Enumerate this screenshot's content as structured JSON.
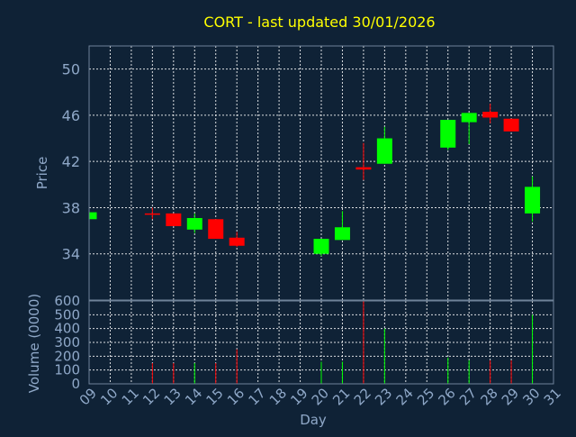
{
  "chart_data": {
    "type": "candlestick",
    "title": "CORT - last updated 30/01/2026",
    "price_panel": {
      "ylabel": "Price",
      "ylim": [
        30,
        52
      ],
      "yticks": [
        34,
        38,
        42,
        46,
        50
      ]
    },
    "volume_panel": {
      "ylabel": "Volume (0000)",
      "ylim": [
        0,
        600
      ],
      "yticks": [
        0,
        100,
        200,
        300,
        400,
        500,
        600
      ]
    },
    "xlabel": "Day",
    "xticks": [
      "09",
      "10",
      "11",
      "12",
      "13",
      "14",
      "15",
      "16",
      "17",
      "18",
      "19",
      "20",
      "21",
      "22",
      "23",
      "24",
      "25",
      "26",
      "27",
      "28",
      "29",
      "30",
      "31"
    ],
    "colors": {
      "up": "#00ff00",
      "down": "#ff0000"
    },
    "candles": [
      {
        "day": "09",
        "open": 37.0,
        "high": 37.6,
        "low": 37.0,
        "close": 37.6,
        "volume": 0
      },
      {
        "day": "12",
        "open": 37.5,
        "high": 38.0,
        "low": 37.0,
        "close": 37.4,
        "volume": 150
      },
      {
        "day": "13",
        "open": 37.5,
        "high": 37.5,
        "low": 36.4,
        "close": 36.4,
        "volume": 150
      },
      {
        "day": "14",
        "open": 36.1,
        "high": 37.5,
        "low": 35.8,
        "close": 37.1,
        "volume": 150
      },
      {
        "day": "15",
        "open": 37.0,
        "high": 37.0,
        "low": 35.3,
        "close": 35.3,
        "volume": 150
      },
      {
        "day": "16",
        "open": 35.4,
        "high": 35.9,
        "low": 34.6,
        "close": 34.7,
        "volume": 250
      },
      {
        "day": "20",
        "open": 34.0,
        "high": 35.3,
        "low": 33.8,
        "close": 35.3,
        "volume": 160
      },
      {
        "day": "21",
        "open": 35.2,
        "high": 37.7,
        "low": 35.2,
        "close": 36.3,
        "volume": 160
      },
      {
        "day": "22",
        "open": 41.5,
        "high": 43.6,
        "low": 40.4,
        "close": 41.3,
        "volume": 600
      },
      {
        "day": "23",
        "open": 41.8,
        "high": 45.0,
        "low": 41.8,
        "close": 44.0,
        "volume": 400
      },
      {
        "day": "26",
        "open": 43.2,
        "high": 45.6,
        "low": 43.0,
        "close": 45.6,
        "volume": 190
      },
      {
        "day": "27",
        "open": 45.4,
        "high": 46.2,
        "low": 43.5,
        "close": 46.2,
        "volume": 170
      },
      {
        "day": "28",
        "open": 46.3,
        "high": 47.0,
        "low": 45.3,
        "close": 45.8,
        "volume": 170
      },
      {
        "day": "29",
        "open": 45.7,
        "high": 45.7,
        "low": 44.6,
        "close": 44.6,
        "volume": 170
      },
      {
        "day": "30",
        "open": 37.5,
        "high": 40.7,
        "low": 36.8,
        "close": 39.8,
        "volume": 500
      }
    ]
  }
}
